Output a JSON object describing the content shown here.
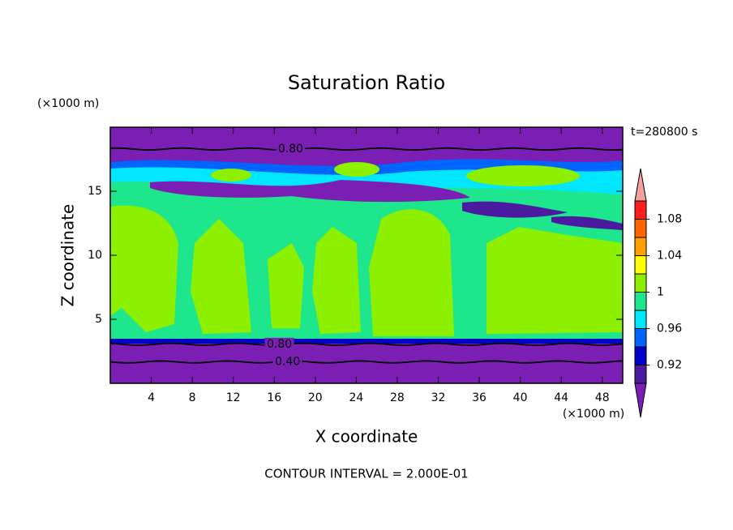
{
  "chart_data": {
    "type": "contour",
    "title": "Saturation Ratio",
    "subtitle": "t=280800 s",
    "x_label": "X coordinate",
    "y_label": "Z coordinate",
    "x_unit": "(×1000 m)",
    "y_unit": "(×1000 m)",
    "note": "CONTOUR INTERVAL = 2.000E-01",
    "xlim": [
      0,
      50
    ],
    "ylim": [
      0,
      20
    ],
    "xticks": [
      4,
      8,
      12,
      16,
      20,
      24,
      28,
      32,
      36,
      40,
      44,
      48
    ],
    "yticks": [
      5,
      10,
      15
    ],
    "contour_lines": [
      {
        "value": 0.8,
        "label": "0.80",
        "z": 18.3,
        "label_x": 17.6
      },
      {
        "value": 0.8,
        "label": "0.80",
        "z": 3.05,
        "label_x": 16.5
      },
      {
        "value": 0.4,
        "label": "0.40",
        "z": 1.67,
        "label_x": 17.3
      }
    ],
    "colorbar": {
      "levels": [
        0.9,
        0.92,
        0.94,
        0.96,
        0.98,
        1,
        1.02,
        1.04,
        1.06,
        1.08,
        1.1
      ],
      "colors": [
        "#4a1aa0",
        "#0000c8",
        "#0064ff",
        "#00e6ff",
        "#1ee68c",
        "#8cf000",
        "#ffff00",
        "#ffa000",
        "#ff6400",
        "#ff1e1e"
      ],
      "under_color": "#7b1fb4",
      "over_color": "#f4a0a0",
      "ticks": [
        0.92,
        0.96,
        1,
        1.04,
        1.08
      ]
    }
  }
}
